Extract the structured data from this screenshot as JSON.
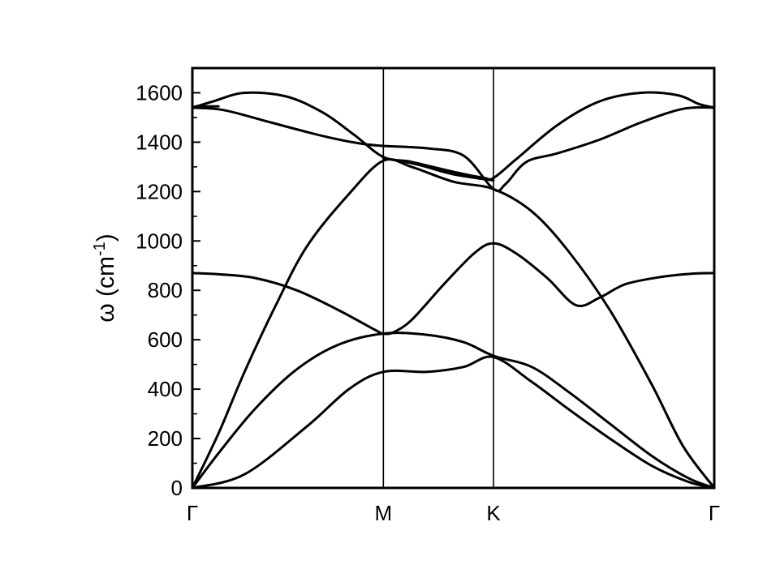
{
  "chart_data": {
    "type": "line",
    "title": "",
    "xlabel": "",
    "ylabel": "ω (cm",
    "ylabel_sup": "-1",
    "ylabel_close": ")",
    "ylim": [
      0,
      1700
    ],
    "yticks": [
      0,
      200,
      400,
      600,
      800,
      1000,
      1200,
      1400,
      1600
    ],
    "ytick_labels": [
      "0",
      "200",
      "400",
      "600",
      "800",
      "1000",
      "1200",
      "1400",
      "1600"
    ],
    "xlim": [
      0,
      1
    ],
    "high_symmetry_points": [
      {
        "label": "Γ",
        "x": 0.0
      },
      {
        "label": "M",
        "x": 0.366
      },
      {
        "label": "K",
        "x": 0.577
      },
      {
        "label": "Γ",
        "x": 1.0
      }
    ],
    "grid": false,
    "legend": "none",
    "line_color": "#000000",
    "series": [
      {
        "points": [
          [
            0,
            0
          ],
          [
            0.1,
            55
          ],
          [
            0.22,
            250
          ],
          [
            0.3,
            400
          ],
          [
            0.366,
            470
          ],
          [
            0.45,
            470
          ],
          [
            0.52,
            490
          ],
          [
            0.577,
            530
          ],
          [
            0.65,
            430
          ],
          [
            0.72,
            320
          ],
          [
            0.8,
            200
          ],
          [
            0.88,
            90
          ],
          [
            0.95,
            25
          ],
          [
            1,
            0
          ]
        ]
      },
      {
        "points": [
          [
            0,
            0
          ],
          [
            0.05,
            140
          ],
          [
            0.12,
            320
          ],
          [
            0.2,
            480
          ],
          [
            0.28,
            580
          ],
          [
            0.366,
            625
          ],
          [
            0.45,
            620
          ],
          [
            0.52,
            590
          ],
          [
            0.577,
            535
          ],
          [
            0.65,
            490
          ],
          [
            0.72,
            390
          ],
          [
            0.8,
            260
          ],
          [
            0.88,
            130
          ],
          [
            0.95,
            40
          ],
          [
            1,
            0
          ]
        ]
      },
      {
        "points": [
          [
            0,
            0
          ],
          [
            0.05,
            220
          ],
          [
            0.1,
            470
          ],
          [
            0.16,
            740
          ],
          [
            0.22,
            980
          ],
          [
            0.3,
            1190
          ],
          [
            0.366,
            1325
          ],
          [
            0.42,
            1300
          ],
          [
            0.5,
            1240
          ],
          [
            0.577,
            1210
          ],
          [
            0.65,
            1120
          ],
          [
            0.72,
            960
          ],
          [
            0.8,
            720
          ],
          [
            0.88,
            420
          ],
          [
            0.94,
            170
          ],
          [
            1,
            0
          ]
        ]
      },
      {
        "points": [
          [
            0,
            870
          ],
          [
            0.05,
            865
          ],
          [
            0.12,
            850
          ],
          [
            0.2,
            800
          ],
          [
            0.28,
            720
          ],
          [
            0.35,
            640
          ],
          [
            0.366,
            625
          ],
          [
            0.385,
            630
          ],
          [
            0.42,
            680
          ],
          [
            0.48,
            820
          ],
          [
            0.54,
            950
          ],
          [
            0.577,
            990
          ],
          [
            0.62,
            950
          ],
          [
            0.68,
            850
          ],
          [
            0.735,
            740
          ],
          [
            0.78,
            770
          ],
          [
            0.83,
            825
          ],
          [
            0.9,
            855
          ],
          [
            0.96,
            868
          ],
          [
            1,
            870
          ]
        ]
      },
      {
        "points": [
          [
            0,
            1540
          ],
          [
            0.06,
            1530
          ],
          [
            0.15,
            1480
          ],
          [
            0.25,
            1425
          ],
          [
            0.32,
            1395
          ],
          [
            0.366,
            1385
          ],
          [
            0.45,
            1375
          ],
          [
            0.52,
            1345
          ],
          [
            0.577,
            1210
          ],
          [
            0.6,
            1230
          ],
          [
            0.64,
            1320
          ],
          [
            0.7,
            1355
          ],
          [
            0.78,
            1410
          ],
          [
            0.86,
            1480
          ],
          [
            0.94,
            1535
          ],
          [
            1,
            1540
          ]
        ]
      },
      {
        "points": [
          [
            0,
            1540
          ],
          [
            0.04,
            1565
          ],
          [
            0.1,
            1600
          ],
          [
            0.18,
            1585
          ],
          [
            0.25,
            1520
          ],
          [
            0.31,
            1430
          ],
          [
            0.366,
            1340
          ],
          [
            0.42,
            1320
          ],
          [
            0.5,
            1280
          ],
          [
            0.56,
            1255
          ],
          [
            0.577,
            1255
          ],
          [
            0.62,
            1330
          ],
          [
            0.7,
            1470
          ],
          [
            0.78,
            1565
          ],
          [
            0.86,
            1600
          ],
          [
            0.93,
            1590
          ],
          [
            0.97,
            1555
          ],
          [
            1,
            1540
          ]
        ]
      },
      {
        "points": [
          [
            0,
            1540
          ],
          [
            0.008,
            1545
          ],
          [
            0.03,
            1545
          ],
          [
            0.05,
            1545
          ]
        ]
      },
      {
        "points": [
          [
            0.366,
            1335
          ],
          [
            0.43,
            1310
          ],
          [
            0.5,
            1270
          ],
          [
            0.577,
            1245
          ]
        ]
      }
    ]
  }
}
